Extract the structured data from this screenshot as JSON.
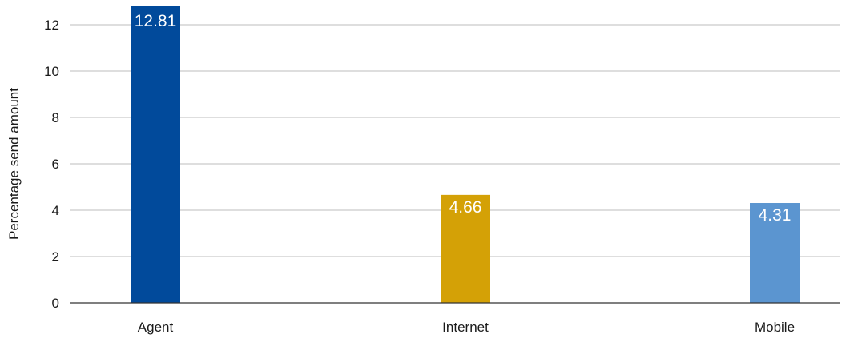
{
  "chart_data": {
    "type": "bar",
    "title": "",
    "xlabel": "",
    "ylabel": "Percentage send amount",
    "categories": [
      "Agent",
      "Internet",
      "Mobile"
    ],
    "values": [
      12.81,
      4.66,
      4.31
    ],
    "data_labels": [
      "12.81",
      "4.66",
      "4.31"
    ],
    "colors": [
      "#014a9b",
      "#d4a106",
      "#5b95d0"
    ],
    "ylim": [
      0,
      12
    ],
    "yticks": [
      0,
      2,
      4,
      6,
      8,
      10,
      12
    ],
    "grid": true,
    "legend": "none"
  }
}
